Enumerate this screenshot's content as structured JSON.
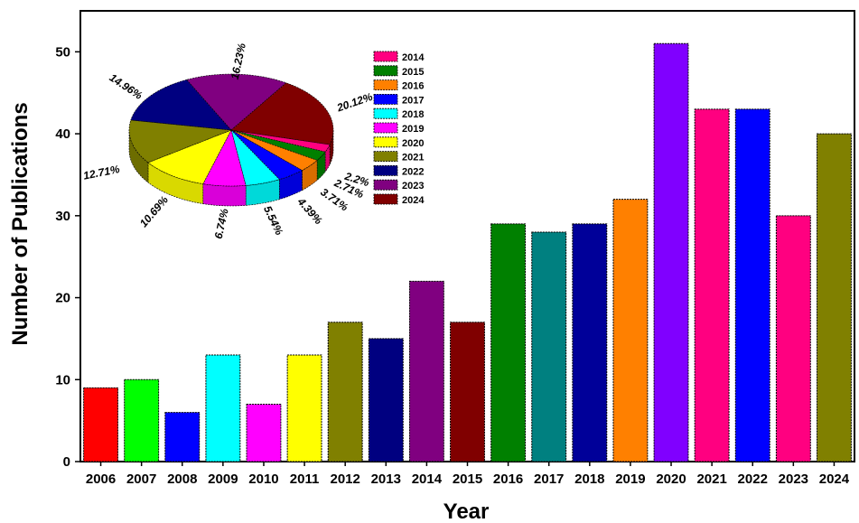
{
  "chart_data": [
    {
      "type": "bar",
      "title": "",
      "xlabel": "Year",
      "ylabel": "Number of Publications",
      "ylim": [
        0,
        55
      ],
      "yticks": [
        "0",
        "10",
        "20",
        "30",
        "40",
        "50"
      ],
      "grid": false,
      "categories": [
        "2006",
        "2007",
        "2008",
        "2009",
        "2010",
        "2011",
        "2012",
        "2013",
        "2014",
        "2015",
        "2016",
        "2017",
        "2018",
        "2019",
        "2020",
        "2021",
        "2022",
        "2023",
        "2024"
      ],
      "values": [
        9,
        10,
        6,
        13,
        7,
        13,
        17,
        15,
        22,
        17,
        29,
        28,
        29,
        32,
        51,
        43,
        43,
        30,
        40
      ],
      "colors": [
        "#ff0000",
        "#00ff00",
        "#0000ff",
        "#00ffff",
        "#ff00ff",
        "#ffff00",
        "#808000",
        "#000080",
        "#800080",
        "#800000",
        "#008000",
        "#008080",
        "#000099",
        "#ff8000",
        "#8000ff",
        "#ff0080",
        "#0000ff",
        "#ff0080",
        "#808000"
      ]
    },
    {
      "type": "pie",
      "legend_position": "right of pie",
      "labels": [
        "2014",
        "2015",
        "2016",
        "2017",
        "2018",
        "2019",
        "2020",
        "2021",
        "2022",
        "2023",
        "2024"
      ],
      "values": [
        2.2,
        2.71,
        3.71,
        4.39,
        5.54,
        6.74,
        10.69,
        12.71,
        14.96,
        16.23,
        20.12
      ],
      "value_labels": [
        "2.2%",
        "2.71%",
        "3.71%",
        "4.39%",
        "5.54%",
        "6.74%",
        "10.69%",
        "12.71%",
        "14.96%",
        "16.23%",
        "20.12%"
      ],
      "colors": [
        "#ff0080",
        "#008000",
        "#ff8000",
        "#0000ff",
        "#00ffff",
        "#ff00ff",
        "#ffff00",
        "#808000",
        "#000080",
        "#800080",
        "#800000"
      ]
    }
  ]
}
